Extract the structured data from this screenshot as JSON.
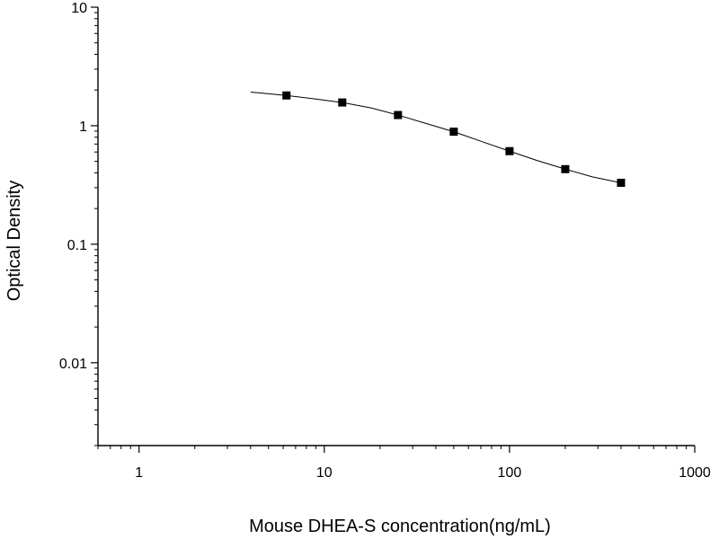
{
  "chart_data": {
    "type": "scatter",
    "title": "",
    "xlabel": "Mouse DHEA-S concentration(ng/mL)",
    "ylabel": "Optical Density",
    "x_scale": "log",
    "y_scale": "log",
    "xlim": [
      0.6,
      1000
    ],
    "ylim": [
      0.002,
      10
    ],
    "x_ticks": [
      {
        "value": 1,
        "label": "1"
      },
      {
        "value": 10,
        "label": "10"
      },
      {
        "value": 100,
        "label": "100"
      },
      {
        "value": 1000,
        "label": "1000"
      }
    ],
    "y_ticks": [
      {
        "value": 0.01,
        "label": "0.01"
      },
      {
        "value": 0.1,
        "label": "0.1"
      },
      {
        "value": 1,
        "label": "1"
      },
      {
        "value": 10,
        "label": "10"
      }
    ],
    "grid": false,
    "legend": "none",
    "series": [
      {
        "marker": "square",
        "color": "#000000",
        "points": [
          {
            "x": 6.25,
            "y": 1.8
          },
          {
            "x": 12.5,
            "y": 1.57
          },
          {
            "x": 25,
            "y": 1.23
          },
          {
            "x": 50,
            "y": 0.89
          },
          {
            "x": 100,
            "y": 0.61
          },
          {
            "x": 200,
            "y": 0.43
          },
          {
            "x": 400,
            "y": 0.33
          }
        ]
      }
    ],
    "fit_curve": {
      "color": "#000000",
      "points": [
        {
          "x": 4,
          "y": 1.92
        },
        {
          "x": 6.25,
          "y": 1.8
        },
        {
          "x": 9,
          "y": 1.68
        },
        {
          "x": 12.5,
          "y": 1.57
        },
        {
          "x": 18,
          "y": 1.41
        },
        {
          "x": 25,
          "y": 1.23
        },
        {
          "x": 35,
          "y": 1.05
        },
        {
          "x": 50,
          "y": 0.89
        },
        {
          "x": 70,
          "y": 0.74
        },
        {
          "x": 100,
          "y": 0.61
        },
        {
          "x": 140,
          "y": 0.51
        },
        {
          "x": 200,
          "y": 0.43
        },
        {
          "x": 280,
          "y": 0.37
        },
        {
          "x": 400,
          "y": 0.33
        }
      ]
    }
  }
}
